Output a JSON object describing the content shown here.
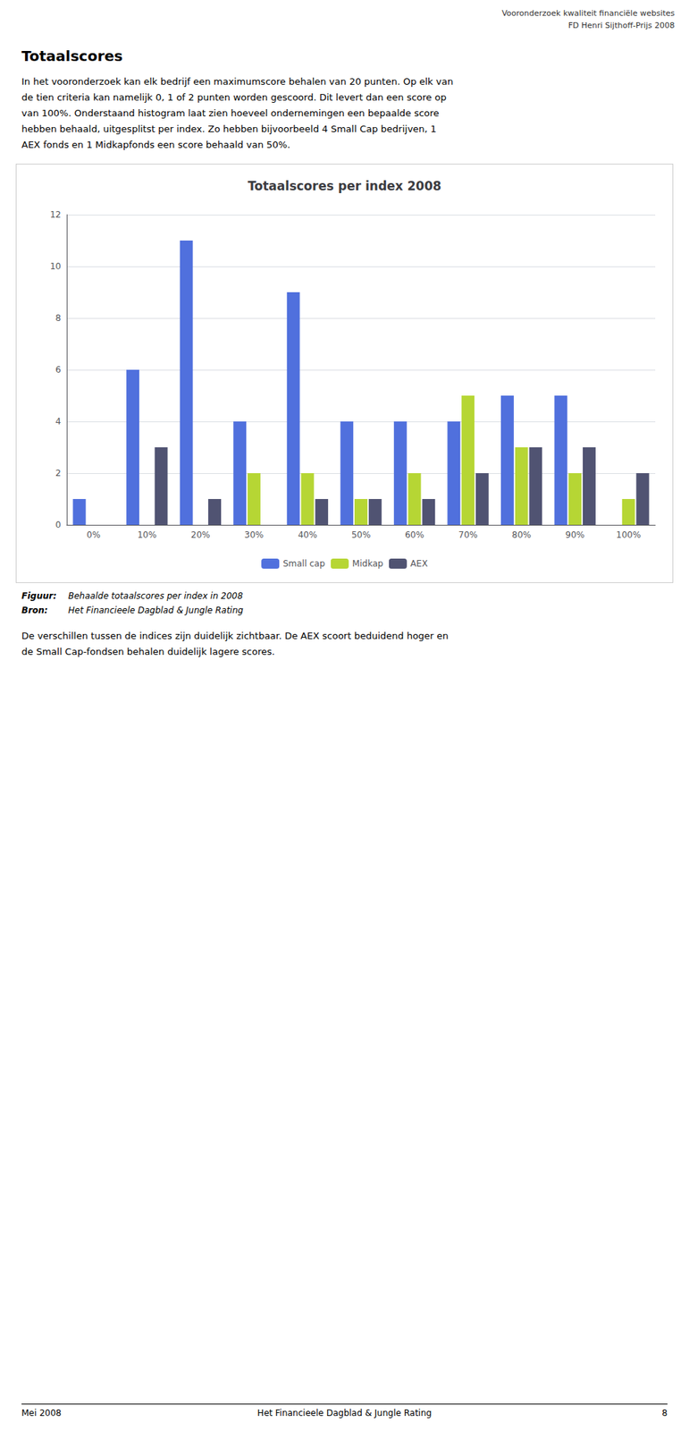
{
  "chart_data": {
    "type": "bar",
    "title": "Totaalscores per index 2008",
    "categories": [
      "0%",
      "10%",
      "20%",
      "30%",
      "40%",
      "50%",
      "60%",
      "70%",
      "80%",
      "90%",
      "100%"
    ],
    "series": [
      {
        "name": "Small cap",
        "values": [
          1,
          6,
          11,
          4,
          9,
          4,
          4,
          4,
          5,
          5,
          0
        ]
      },
      {
        "name": "Midkap",
        "values": [
          0,
          0,
          0,
          2,
          2,
          1,
          2,
          5,
          3,
          2,
          1
        ]
      },
      {
        "name": "AEX",
        "values": [
          0,
          3,
          1,
          0,
          1,
          1,
          1,
          2,
          3,
          3,
          2
        ]
      }
    ],
    "ylim": [
      0,
      12
    ],
    "yticks": [
      0,
      2,
      4,
      6,
      8,
      10,
      12
    ],
    "grid": true,
    "legend": "bottom",
    "header": [
      "Vooronderzoek kwaliteit financiële websites",
      "FD Henri Sijthoff-Prijs 2008"
    ],
    "section_title": "Totaalscores",
    "body_text": [
      "In het vooronderzoek kan elk bedrijf een maximumscore behalen van 20 punten. Op elk van",
      "de tien criteria kan namelijk 0, 1 of 2 punten worden gescoord. Dit levert dan een score op",
      "van 100%. Onderstaand histogram laat zien hoeveel ondernemingen een bepaalde score",
      "hebben behaald, uitgesplitst per index. Zo hebben bijvoorbeeld 4 Small Cap bedrijven, 1",
      "AEX fonds en 1 Midkapfonds een score behaald van 50%."
    ],
    "caption_label": "Figuur:",
    "caption": "Behaalde totaalscores per index in 2008",
    "source_label": "Bron:",
    "source": "Het Financieele Dagblad & Jungle Rating",
    "post_text": [
      "De verschillen tussen de indices zijn duidelijk zichtbaar. De AEX scoort beduidend hoger en",
      "de Small Cap-fondsen behalen duidelijk lagere scores."
    ],
    "footer": [
      "Mei 2008",
      "Het Financieele Dagblad & Jungle Rating",
      "8"
    ]
  }
}
